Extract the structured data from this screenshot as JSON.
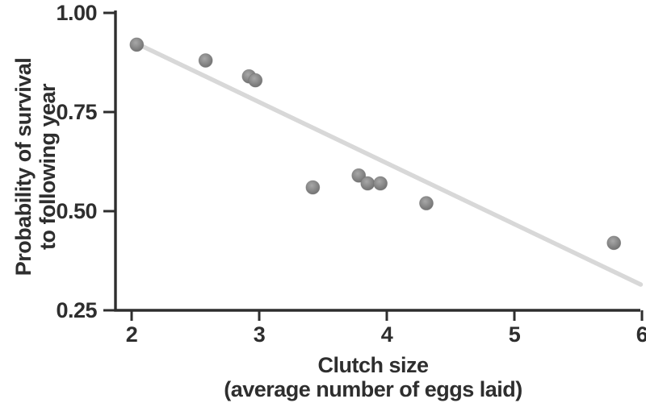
{
  "chart_data": {
    "type": "scatter",
    "title": "",
    "xlabel_line1": "Clutch size",
    "xlabel_line2": "(average number of eggs laid)",
    "ylabel_line1": "Probability of survival",
    "ylabel_line2": "to following year",
    "xlim": [
      1.87,
      6.0
    ],
    "ylim": [
      0.25,
      1.0
    ],
    "grid": false,
    "legend": null,
    "x_ticks": [
      {
        "value": 2,
        "label": "2"
      },
      {
        "value": 3,
        "label": "3"
      },
      {
        "value": 4,
        "label": "4"
      },
      {
        "value": 5,
        "label": "5"
      },
      {
        "value": 6,
        "label": "6"
      }
    ],
    "y_ticks": [
      {
        "value": 0.25,
        "label": "0.25"
      },
      {
        "value": 0.5,
        "label": "0.50"
      },
      {
        "value": 0.75,
        "label": "0.75"
      },
      {
        "value": 1.0,
        "label": "1.00"
      }
    ],
    "points": [
      {
        "x": 2.04,
        "y": 0.92
      },
      {
        "x": 2.58,
        "y": 0.88
      },
      {
        "x": 2.92,
        "y": 0.84
      },
      {
        "x": 2.97,
        "y": 0.83
      },
      {
        "x": 3.42,
        "y": 0.56
      },
      {
        "x": 3.78,
        "y": 0.59
      },
      {
        "x": 3.85,
        "y": 0.57
      },
      {
        "x": 3.95,
        "y": 0.57
      },
      {
        "x": 4.31,
        "y": 0.52
      },
      {
        "x": 5.78,
        "y": 0.42
      }
    ],
    "trendline": {
      "x1": 2.09,
      "y1": 0.915,
      "x2": 5.99,
      "y2": 0.315
    },
    "colors": {
      "axis": "#2e2e2e",
      "trend_line": "#d8d8d8",
      "point_light": "#a8a8a8",
      "point_mid": "#868686",
      "point_dark": "#6a6a6a"
    }
  }
}
